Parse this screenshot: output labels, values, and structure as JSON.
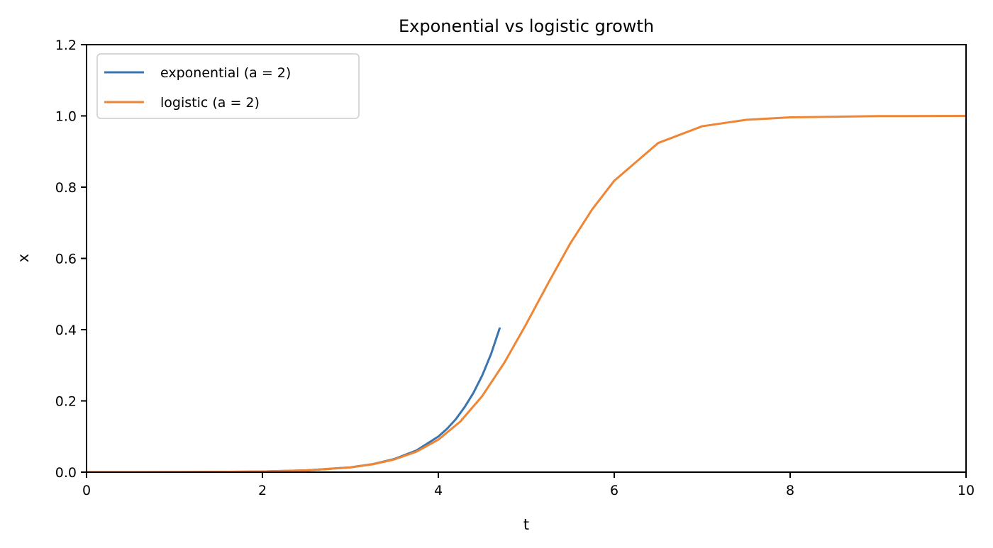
{
  "chart_data": {
    "type": "line",
    "title": "Exponential vs logistic growth",
    "xlabel": "t",
    "ylabel": "x",
    "xlim": [
      0,
      10
    ],
    "ylim": [
      0,
      1.2
    ],
    "xticks": [
      0,
      2,
      4,
      6,
      8,
      10
    ],
    "yticks": [
      0.0,
      0.2,
      0.4,
      0.6,
      0.8,
      1.0,
      1.2
    ],
    "xtick_labels": [
      "0",
      "2",
      "4",
      "6",
      "8",
      "10"
    ],
    "ytick_labels": [
      "0.0",
      "0.2",
      "0.4",
      "0.6",
      "0.8",
      "1.0",
      "1.2"
    ],
    "grid": false,
    "legend_position": "top-left",
    "series": [
      {
        "name": "exponential (a = 2)",
        "color": "#3b75af",
        "x": [
          0,
          0.5,
          1,
          1.5,
          2,
          2.5,
          3,
          3.25,
          3.5,
          3.75,
          4,
          4.1,
          4.2,
          4.3,
          4.4,
          4.5,
          4.6,
          4.7
        ],
        "y": [
          3.35e-05,
          9.11e-05,
          0.000248,
          0.000674,
          0.00183,
          0.00498,
          0.0135,
          0.0223,
          0.0368,
          0.0607,
          0.1,
          0.122,
          0.149,
          0.183,
          0.223,
          0.272,
          0.332,
          0.406
        ]
      },
      {
        "name": "logistic (a = 2)",
        "color": "#ef8636",
        "x": [
          0,
          0.5,
          1,
          1.5,
          2,
          2.5,
          3,
          3.25,
          3.5,
          3.75,
          4,
          4.25,
          4.5,
          4.75,
          5,
          5.25,
          5.5,
          5.75,
          6,
          6.5,
          7,
          7.5,
          8,
          9,
          10
        ],
        "y": [
          3.35e-05,
          9.11e-05,
          0.000248,
          0.000674,
          0.00183,
          0.00496,
          0.0133,
          0.0219,
          0.0356,
          0.0573,
          0.0911,
          0.142,
          0.214,
          0.307,
          0.416,
          0.531,
          0.642,
          0.738,
          0.818,
          0.924,
          0.971,
          0.989,
          0.996,
          0.99945,
          0.99993
        ]
      }
    ]
  }
}
